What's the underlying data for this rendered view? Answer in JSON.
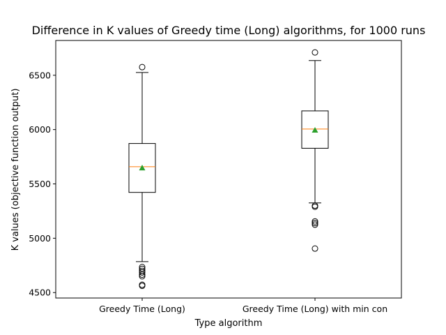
{
  "chart_data": {
    "type": "box",
    "title": "Difference in K values of Greedy time (Long) algorithms, for 1000 runs",
    "xlabel": "Type algorithm",
    "ylabel": "K values (objective function output)",
    "ylim": [
      4450,
      6820
    ],
    "yticks": [
      4500,
      5000,
      5500,
      6000,
      6500
    ],
    "grid": false,
    "categories": [
      "Greedy Time (Long)",
      "Greedy Time (Long) with min con"
    ],
    "boxes": [
      {
        "name": "Greedy Time (Long)",
        "whisker_low": 4785,
        "q1": 5422,
        "median": 5658,
        "q3": 5872,
        "whisker_high": 6525,
        "mean": 5648,
        "outliers": [
          6575,
          4735,
          4718,
          4700,
          4685,
          4665,
          4650,
          4572,
          4562
        ]
      },
      {
        "name": "Greedy Time (Long) with min con",
        "whisker_low": 5325,
        "q1": 5828,
        "median": 6005,
        "q3": 6172,
        "whisker_high": 6635,
        "mean": 5995,
        "outliers": [
          6710,
          5300,
          5290,
          5155,
          5140,
          5125,
          4905
        ]
      }
    ],
    "colors": {
      "box": "#000000",
      "median": "#ff7f0e",
      "mean": "#2ca02c"
    }
  }
}
